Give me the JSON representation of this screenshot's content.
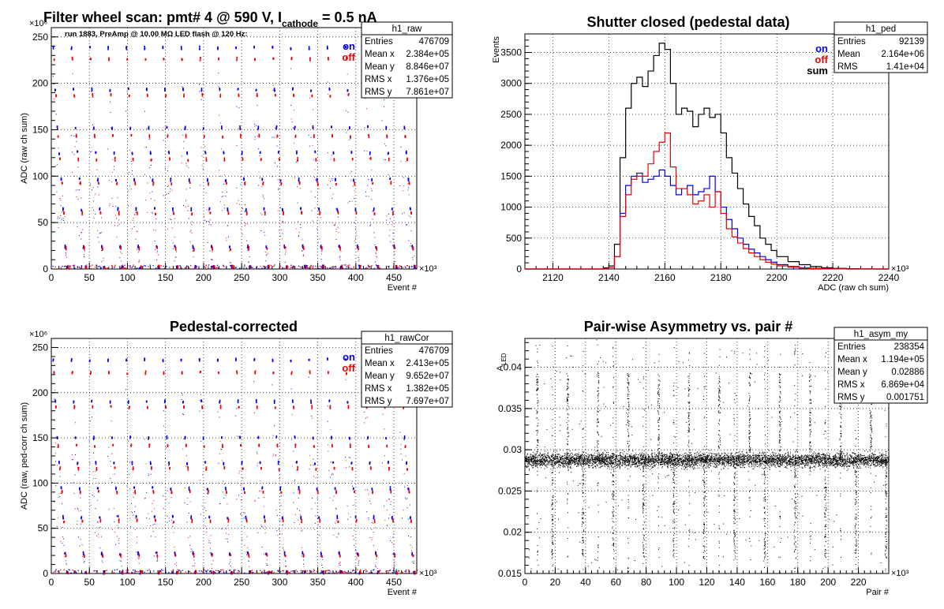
{
  "panels": [
    {
      "id": "raw",
      "title_main": "Filter wheel scan: pmt#   4 @   590 V, I",
      "title_sub": "cathode",
      "title_tail": " = 0.5 nA",
      "note": "run 1883, PreAmp @ 10.00 MΩ LED flash @  120 Hz:",
      "ylabel": "ADC (raw ch sum)",
      "xlabel": "Event #",
      "xexp": "×10³",
      "yexp": "×10⁶",
      "legend": [
        {
          "label": "on",
          "color": "#0000ee"
        },
        {
          "label": "off",
          "color": "#ee0000"
        }
      ],
      "stats": {
        "name": "h1_raw",
        "rows": [
          [
            "Entries",
            "476709"
          ],
          [
            "Mean x",
            "2.384e+05"
          ],
          [
            "Mean y",
            "8.846e+07"
          ],
          [
            "RMS x",
            "1.376e+05"
          ],
          [
            "RMS y",
            "7.861e+07"
          ]
        ]
      }
    },
    {
      "id": "ped",
      "title": "Shutter closed (pedestal data)",
      "ylabel": "Events",
      "xlabel": "ADC (raw ch sum)",
      "xexp": "×10³",
      "legend": [
        {
          "label": "on",
          "color": "#0000ee"
        },
        {
          "label": "off",
          "color": "#ee0000"
        },
        {
          "label": "sum",
          "color": "#000000"
        }
      ],
      "stats": {
        "name": "h1_ped",
        "rows": [
          [
            "Entries",
            "92139"
          ],
          [
            "Mean",
            "2.164e+06"
          ],
          [
            "RMS",
            "1.41e+04"
          ]
        ]
      }
    },
    {
      "id": "rawCor",
      "title": "Pedestal-corrected",
      "ylabel": "ADC (raw, ped-corr ch sum)",
      "xlabel": "Event #",
      "xexp": "×10³",
      "yexp": "×10⁶",
      "legend": [
        {
          "label": "on",
          "color": "#0000ee"
        },
        {
          "label": "off",
          "color": "#ee0000"
        }
      ],
      "stats": {
        "name": "h1_rawCor",
        "rows": [
          [
            "Entries",
            "476709"
          ],
          [
            "Mean x",
            "2.413e+05"
          ],
          [
            "Mean y",
            "9.652e+07"
          ],
          [
            "RMS x",
            "1.382e+05"
          ],
          [
            "RMS y",
            "7.697e+07"
          ]
        ]
      }
    },
    {
      "id": "asym",
      "title": "Pair-wise Asymmetry vs. pair #",
      "ylabel_main": "A",
      "ylabel_sub": "LED",
      "xlabel": "Pair #",
      "xexp": "×10³",
      "stats": {
        "name": "h1_asym_my",
        "rows": [
          [
            "Entries",
            "238354"
          ],
          [
            "Mean x",
            "1.194e+05"
          ],
          [
            "Mean y",
            "0.02886"
          ],
          [
            "RMS x",
            "6.869e+04"
          ],
          [
            "RMS y",
            "0.001751"
          ]
        ]
      }
    }
  ],
  "chart_data": [
    {
      "type": "scatter",
      "title": "Filter wheel scan: pmt#   4 @   590 V, I cathode = 0.5 nA",
      "xlabel": "Event #",
      "ylabel": "ADC (raw ch sum)",
      "x_ticks": [
        "0",
        "50",
        "100",
        "150",
        "200",
        "250",
        "300",
        "350",
        "400",
        "450"
      ],
      "y_ticks": [
        "0",
        "50",
        "100",
        "150",
        "200",
        "250"
      ],
      "xlim": [
        0,
        480
      ],
      "ylim": [
        0,
        260
      ],
      "grid": true,
      "legend_position": "top-right",
      "series": [
        {
          "name": "on",
          "color": "#0000ee",
          "levels": [
            238,
            193,
            152,
            125,
            96,
            64,
            24,
            2
          ]
        },
        {
          "name": "off",
          "color": "#ee0000",
          "levels": [
            226,
            187,
            143,
            118,
            92,
            60,
            22,
            2
          ]
        }
      ],
      "cycle_length": 24,
      "note": "x in units of 10^3 events, y in units of 10^6"
    },
    {
      "type": "line",
      "title": "Shutter closed (pedestal data)",
      "xlabel": "ADC (raw ch sum)",
      "ylabel": "Events",
      "x_ticks": [
        "2120",
        "2140",
        "2160",
        "2180",
        "2200",
        "2220",
        "2240"
      ],
      "y_ticks": [
        "0",
        "500",
        "1000",
        "1500",
        "2000",
        "2500",
        "3000",
        "3500"
      ],
      "xlim": [
        2110,
        2240
      ],
      "ylim": [
        0,
        3800
      ],
      "grid": true,
      "legend_position": "top-right",
      "x": [
        2135,
        2138,
        2140,
        2142,
        2144,
        2146,
        2148,
        2150,
        2152,
        2154,
        2156,
        2158,
        2160,
        2162,
        2164,
        2166,
        2168,
        2170,
        2172,
        2174,
        2176,
        2178,
        2180,
        2182,
        2184,
        2186,
        2188,
        2190,
        2192,
        2194,
        2196,
        2198,
        2200,
        2204,
        2208,
        2212,
        2216,
        2220,
        2225,
        2230,
        2235
      ],
      "series": [
        {
          "name": "sum",
          "color": "#000000",
          "values": [
            0,
            20,
            50,
            400,
            1800,
            2600,
            3000,
            3100,
            2950,
            3200,
            3450,
            3650,
            3550,
            3000,
            2500,
            2600,
            2550,
            2300,
            2500,
            2600,
            2450,
            2500,
            2200,
            1800,
            1550,
            1300,
            1050,
            850,
            700,
            500,
            400,
            300,
            200,
            120,
            70,
            40,
            20,
            10,
            5,
            2,
            0
          ]
        },
        {
          "name": "on",
          "color": "#0000ee",
          "values": [
            0,
            10,
            25,
            200,
            900,
            1350,
            1500,
            1550,
            1400,
            1450,
            1500,
            1600,
            1500,
            1350,
            1200,
            1300,
            1350,
            1200,
            1250,
            1300,
            1500,
            1250,
            1000,
            800,
            650,
            500,
            400,
            320,
            260,
            200,
            150,
            110,
            70,
            40,
            20,
            10,
            5,
            2,
            0,
            0,
            0
          ]
        },
        {
          "name": "off",
          "color": "#ee0000",
          "values": [
            0,
            10,
            25,
            200,
            850,
            1200,
            1450,
            1500,
            1500,
            1700,
            1900,
            2050,
            2200,
            1650,
            1300,
            1300,
            1200,
            1050,
            1100,
            1200,
            1000,
            1250,
            900,
            650,
            520,
            420,
            330,
            260,
            200,
            150,
            110,
            80,
            50,
            30,
            15,
            8,
            4,
            2,
            0,
            0,
            0
          ]
        }
      ]
    },
    {
      "type": "scatter",
      "title": "Pedestal-corrected",
      "xlabel": "Event #",
      "ylabel": "ADC (raw, ped-corr ch sum)",
      "x_ticks": [
        "0",
        "50",
        "100",
        "150",
        "200",
        "250",
        "300",
        "350",
        "400",
        "450"
      ],
      "y_ticks": [
        "0",
        "50",
        "100",
        "150",
        "200",
        "250"
      ],
      "xlim": [
        0,
        480
      ],
      "ylim": [
        0,
        260
      ],
      "grid": true,
      "legend_position": "top-right",
      "series": [
        {
          "name": "on",
          "color": "#0000ee",
          "levels": [
            236,
            190,
            150,
            122,
            94,
            62,
            22,
            1
          ]
        },
        {
          "name": "off",
          "color": "#ee0000",
          "levels": [
            222,
            184,
            141,
            116,
            90,
            58,
            20,
            1
          ]
        }
      ],
      "cycle_length": 24,
      "note": "x in units of 10^3 events, y in units of 10^6"
    },
    {
      "type": "scatter",
      "title": "Pair-wise Asymmetry vs. pair #",
      "xlabel": "Pair #",
      "ylabel": "A LED",
      "x_ticks": [
        "0",
        "20",
        "40",
        "60",
        "80",
        "100",
        "120",
        "140",
        "160",
        "180",
        "200",
        "220"
      ],
      "y_ticks": [
        "0.015",
        "0.02",
        "0.025",
        "0.03",
        "0.035",
        "0.04"
      ],
      "xlim": [
        0,
        240
      ],
      "ylim": [
        0.015,
        0.0435
      ],
      "grid": true,
      "band_center": 0.0288,
      "band_halfwidth": 0.0012,
      "spike_x": [
        8,
        18,
        28,
        38,
        48,
        58,
        68,
        78,
        88,
        98,
        108,
        118,
        128,
        138,
        148,
        158,
        168,
        178,
        188,
        198,
        208,
        218,
        228,
        238
      ]
    }
  ]
}
